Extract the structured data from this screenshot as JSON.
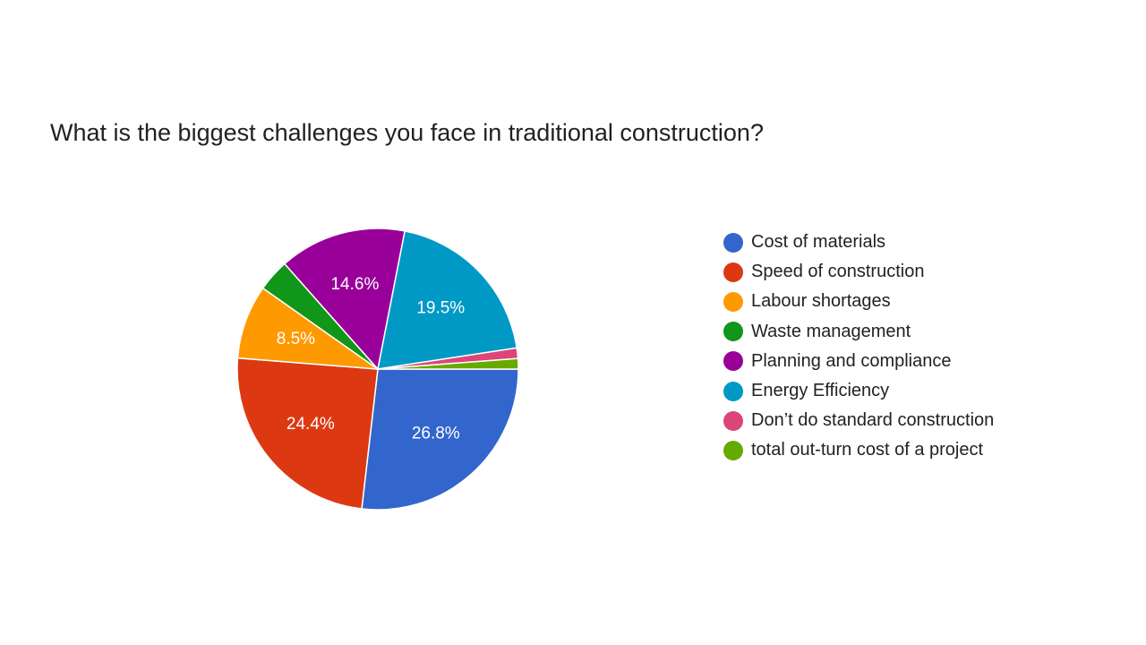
{
  "chart_data": {
    "type": "pie",
    "title": "What is the biggest challenges you face in traditional construction?",
    "legend_position": "right",
    "slices": [
      {
        "label": "Cost of materials",
        "value": 26.8,
        "value_label": "26.8%",
        "color": "#3366CC"
      },
      {
        "label": "Speed of construction",
        "value": 24.4,
        "value_label": "24.4%",
        "color": "#DC3912"
      },
      {
        "label": "Labour shortages",
        "value": 8.5,
        "value_label": "8.5%",
        "color": "#FF9900"
      },
      {
        "label": "Waste management",
        "value": 3.7,
        "value_label": "",
        "color": "#109618"
      },
      {
        "label": "Planning and compliance",
        "value": 14.6,
        "value_label": "14.6%",
        "color": "#990099"
      },
      {
        "label": "Energy Efficiency",
        "value": 19.5,
        "value_label": "19.5%",
        "color": "#0099C6"
      },
      {
        "label": "Don’t do standard construction",
        "value": 1.2,
        "value_label": "",
        "color": "#DD4477"
      },
      {
        "label": "total out-turn cost of a project",
        "value": 1.2,
        "value_label": "",
        "color": "#66AA00"
      }
    ]
  }
}
